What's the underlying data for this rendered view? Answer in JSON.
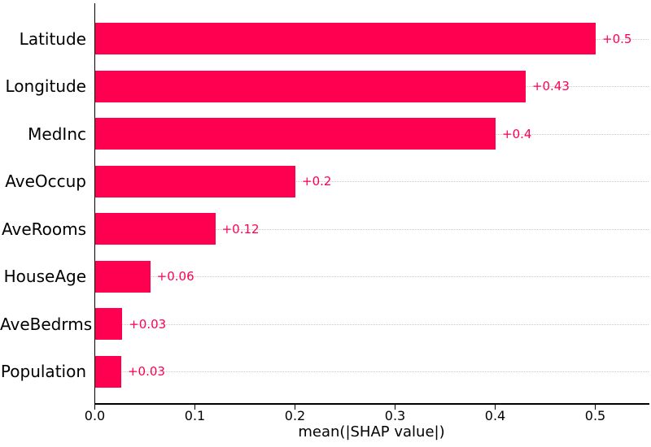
{
  "chart_data": {
    "type": "bar",
    "orientation": "horizontal",
    "title": "",
    "xlabel": "mean(|SHAP value|)",
    "ylabel": "",
    "categories": [
      "Latitude",
      "Longitude",
      "MedInc",
      "AveOccup",
      "AveRooms",
      "HouseAge",
      "AveBedrms",
      "Population"
    ],
    "values": [
      0.5,
      0.43,
      0.4,
      0.2,
      0.12,
      0.055,
      0.027,
      0.026
    ],
    "bar_value_labels": [
      "+0.5",
      "+0.43",
      "+0.4",
      "+0.2",
      "+0.12",
      "+0.06",
      "+0.03",
      "+0.03"
    ],
    "x_tick_values": [
      0.0,
      0.1,
      0.2,
      0.3,
      0.4,
      0.5
    ],
    "x_tick_labels": [
      "0.0",
      "0.1",
      "0.2",
      "0.3",
      "0.4",
      "0.5"
    ],
    "xlim": [
      0,
      0.553
    ],
    "legend": null,
    "grid": {
      "horizontal": "dotted",
      "vertical": "none"
    },
    "colors": {
      "bar": "#ff0051",
      "value_label": "#ff0051",
      "gridline": "#c9c9c9",
      "axis": "#000000",
      "text": "#000000",
      "background": "#ffffff"
    }
  }
}
